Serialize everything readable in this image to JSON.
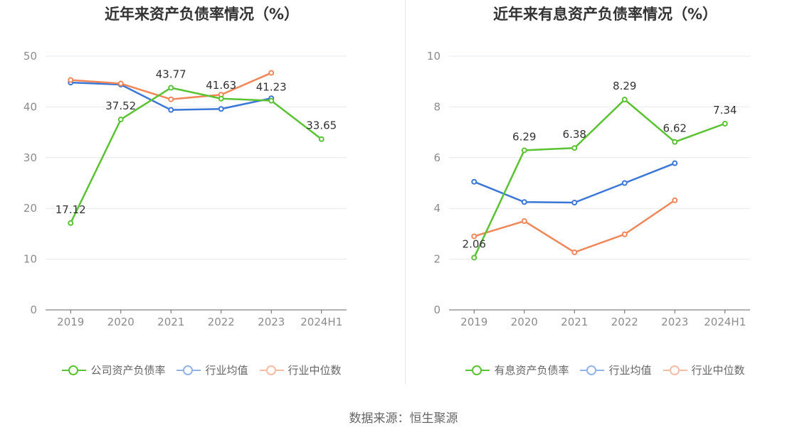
{
  "source": "数据来源：恒生聚源",
  "chart_data": [
    {
      "type": "line",
      "title": "近年来资产负债率情况（%）",
      "categories": [
        "2019",
        "2020",
        "2021",
        "2022",
        "2023",
        "2024H1"
      ],
      "ylim": [
        0,
        50
      ],
      "yticks": [
        0,
        10,
        20,
        30,
        40,
        50
      ],
      "ytick_labels": [
        "0",
        "10",
        "20",
        "30",
        "40",
        "50"
      ],
      "grid": true,
      "legend_position": "bottom",
      "series": [
        {
          "name": "公司资产负债率",
          "color": "#5ac334",
          "faded": false,
          "labeled": true,
          "values": [
            17.12,
            37.52,
            43.77,
            41.63,
            41.23,
            33.65
          ],
          "labels": [
            "17.12",
            "37.52",
            "43.77",
            "41.63",
            "41.23",
            "33.65"
          ]
        },
        {
          "name": "行业均值",
          "color": "#3a77d6",
          "faded": true,
          "labeled": false,
          "values": [
            44.8,
            44.4,
            39.4,
            39.6,
            41.7,
            null
          ]
        },
        {
          "name": "行业中位数",
          "color": "#f0875a",
          "faded": true,
          "labeled": false,
          "values": [
            45.3,
            44.6,
            41.5,
            42.4,
            46.7,
            null
          ]
        }
      ]
    },
    {
      "type": "line",
      "title": "近年来有息资产负债率情况（%）",
      "categories": [
        "2019",
        "2020",
        "2021",
        "2022",
        "2023",
        "2024H1"
      ],
      "ylim": [
        0,
        10
      ],
      "yticks": [
        0,
        2,
        4,
        6,
        8,
        10
      ],
      "ytick_labels": [
        "0",
        "2",
        "4",
        "6",
        "8",
        "10"
      ],
      "grid": true,
      "legend_position": "bottom",
      "series": [
        {
          "name": "有息资产负债率",
          "color": "#5ac334",
          "faded": false,
          "labeled": true,
          "values": [
            2.06,
            6.29,
            6.38,
            8.29,
            6.62,
            7.34
          ],
          "labels": [
            "2.06",
            "6.29",
            "6.38",
            "8.29",
            "6.62",
            "7.34"
          ]
        },
        {
          "name": "行业均值",
          "color": "#3a77d6",
          "faded": true,
          "labeled": false,
          "values": [
            5.05,
            4.25,
            4.23,
            5.0,
            5.78,
            null
          ]
        },
        {
          "name": "行业中位数",
          "color": "#f0875a",
          "faded": true,
          "labeled": false,
          "values": [
            2.9,
            3.5,
            2.27,
            2.98,
            4.32,
            null
          ]
        }
      ]
    }
  ]
}
